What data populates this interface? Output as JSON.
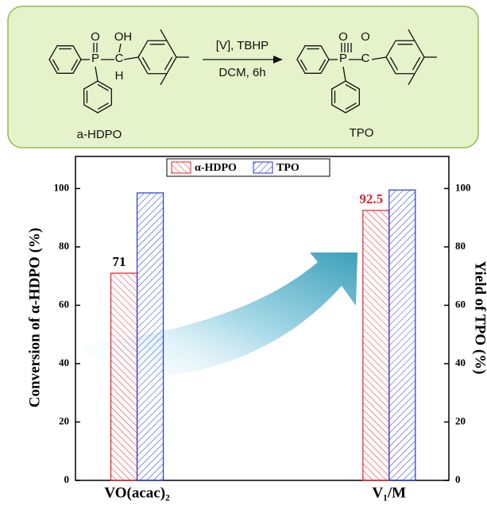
{
  "scheme": {
    "atoms": [
      "O",
      "OH",
      "P",
      "C",
      "H",
      "O",
      "O",
      "P",
      "C"
    ],
    "reagents": "[V], TBHP",
    "conditions": "DCM, 6h",
    "reactant_label": "a-HDPO",
    "product_label": "TPO"
  },
  "chart_data": {
    "type": "bar",
    "categories": [
      "VO(acac)₂",
      "V₁/M"
    ],
    "series": [
      {
        "name": "α-HDPO",
        "color": "#e8202a",
        "values": [
          71,
          92.5
        ],
        "label_colors": [
          "#000000",
          "#e8202a"
        ]
      },
      {
        "name": "TPO",
        "color": "#2236d8",
        "values": [
          98.5,
          99.5
        ],
        "axis": "y2"
      }
    ],
    "ylabel": "Conversion of α-HDPO (%)",
    "y2label": "Yield of TPO (%)",
    "ylim": [
      0,
      111
    ],
    "yticks": [
      0,
      20,
      40,
      60,
      80,
      100
    ],
    "y2lim": [
      0,
      111
    ],
    "y2ticks": [
      0,
      20,
      40,
      60,
      80,
      100
    ],
    "legend": "top"
  }
}
